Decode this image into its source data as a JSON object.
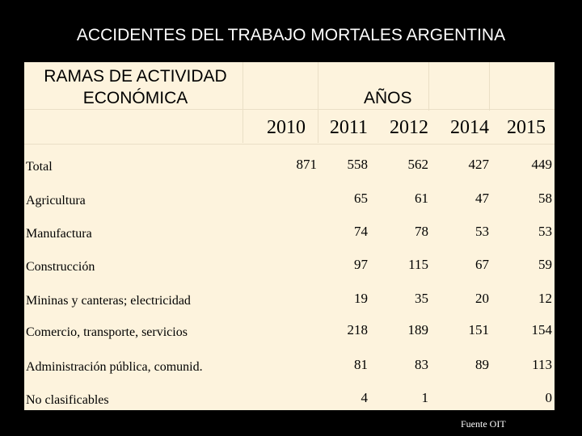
{
  "title": "ACCIDENTES DEL TRABAJO MORTALES ARGENTINA",
  "table": {
    "header": {
      "branch": "RAMAS DE ACTIVIDAD ECONÓMICA",
      "years_label": "AÑOS",
      "years": [
        2010,
        2011,
        2012,
        2014,
        2015
      ]
    },
    "rows": [
      {
        "label": "Total",
        "values": [
          871,
          558,
          562,
          427,
          449
        ]
      },
      {
        "label": "Agricultura",
        "values": [
          null,
          65,
          61,
          47,
          58
        ]
      },
      {
        "label": "Manufactura",
        "values": [
          null,
          74,
          78,
          53,
          53
        ]
      },
      {
        "label": "Construcción",
        "values": [
          null,
          97,
          115,
          67,
          59
        ]
      },
      {
        "label": "Mininas y canteras; electricidad",
        "values": [
          null,
          19,
          35,
          20,
          12
        ]
      },
      {
        "label": "Comercio, transporte, servicios",
        "values": [
          null,
          218,
          189,
          151,
          154
        ]
      },
      {
        "label": "Administración pública, comunid.",
        "values": [
          null,
          81,
          83,
          89,
          113
        ]
      },
      {
        "label": "No clasificables",
        "values": [
          null,
          4,
          1,
          null,
          0
        ]
      }
    ]
  },
  "source": "Fuente OIT"
}
